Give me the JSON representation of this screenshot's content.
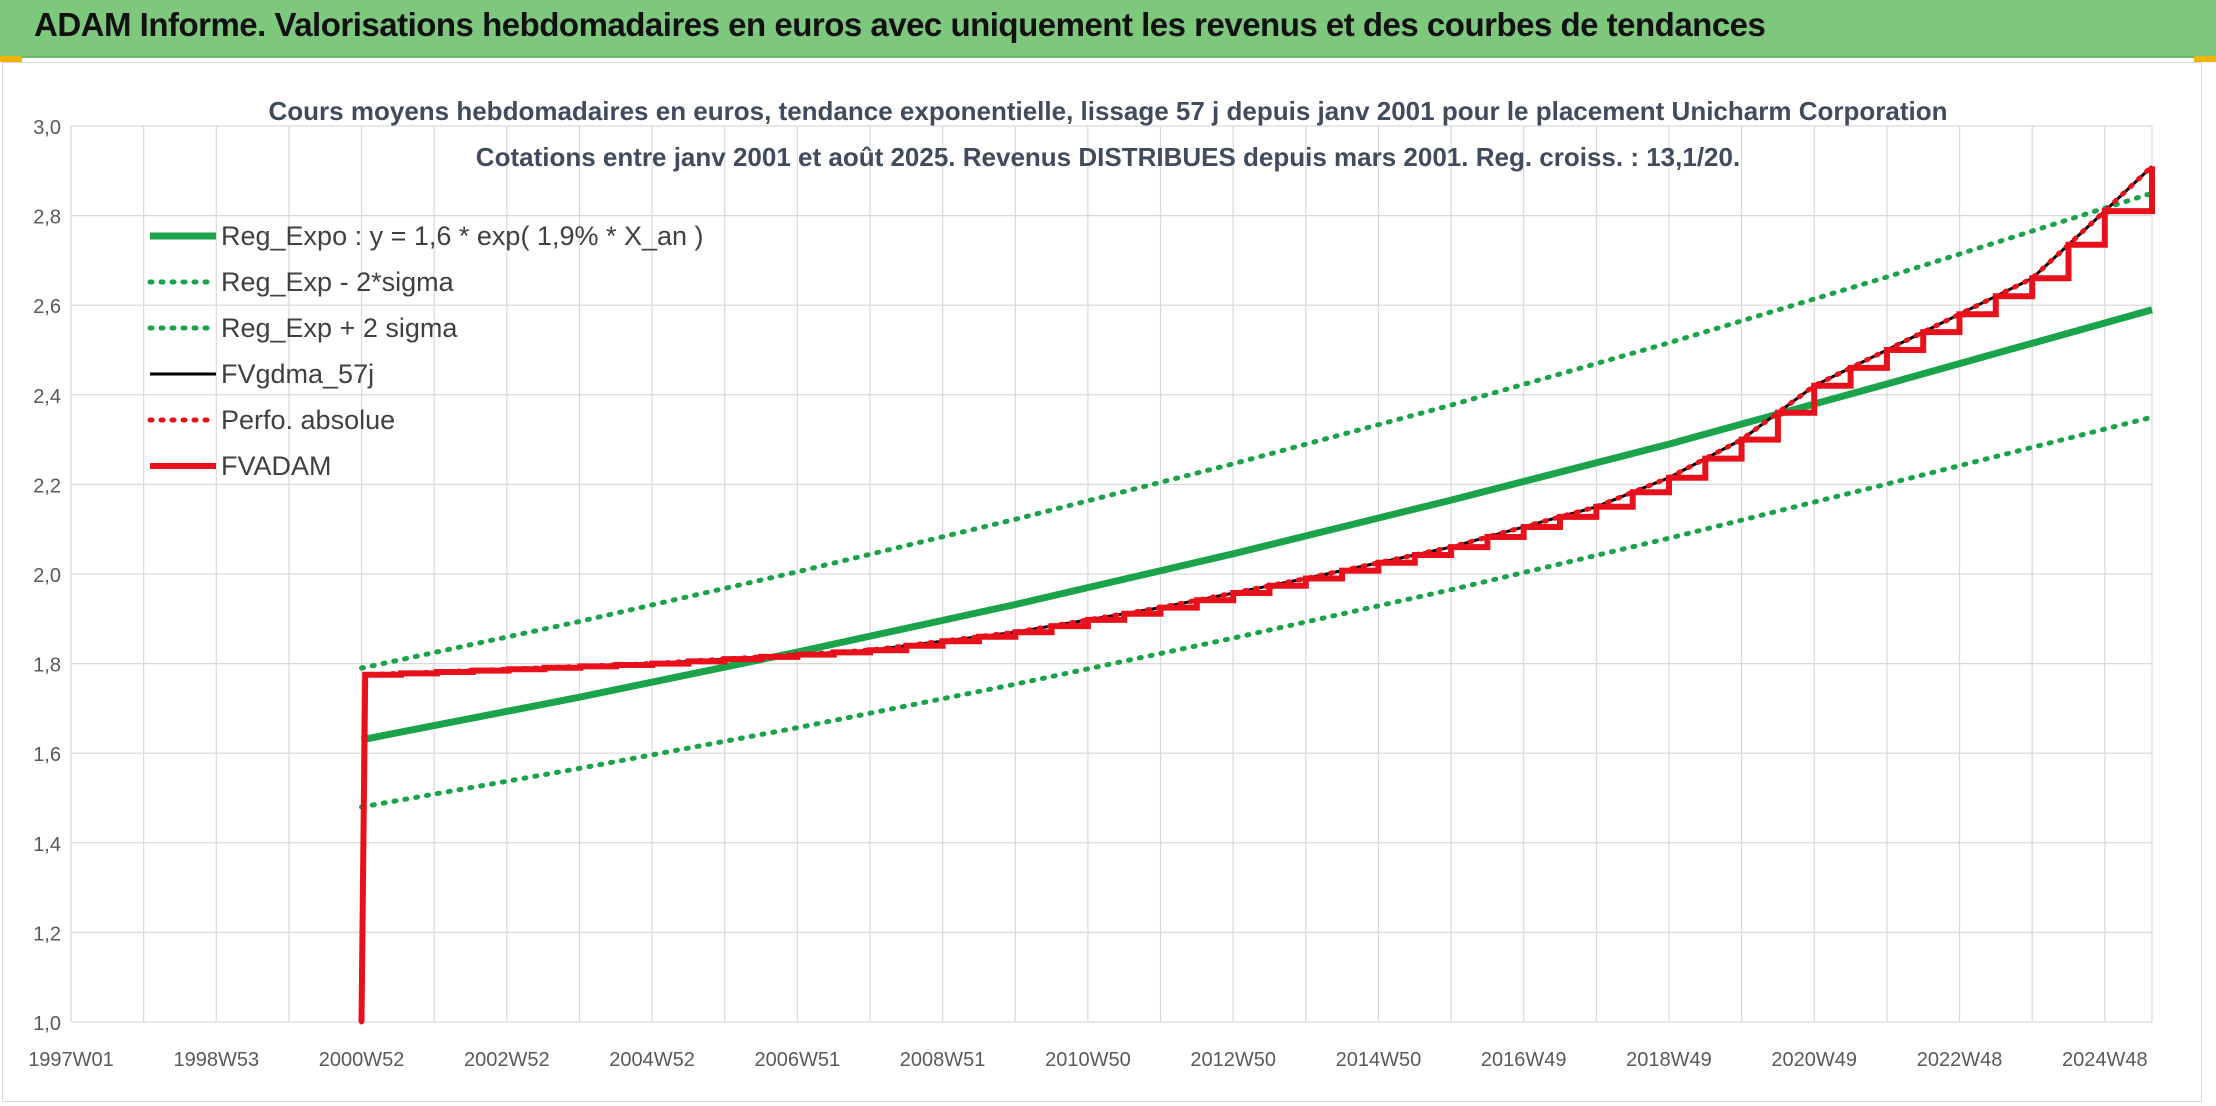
{
  "banner": {
    "title": "ADAM Informe. Valorisations hebdomadaires en euros avec uniquement les revenus et des courbes de tendances"
  },
  "colors": {
    "banner_bg": "#7ec87e",
    "reg_green": "#1aa34a",
    "red": "#e8101a",
    "black": "#000000",
    "grid": "#d9d9d9"
  },
  "chart_data": {
    "type": "line",
    "title": "Cours moyens hebdomadaires en euros, tendance exponentielle, lissage 57 j depuis janv 2001 pour le placement Unicharm Corporation",
    "subtitle": "Cotations entre janv 2001 et août 2025. Revenus DISTRIBUES depuis mars 2001. Reg. croiss. : 13,1/20.",
    "xlabel": "",
    "ylabel": "",
    "ylim": [
      1.0,
      3.0
    ],
    "xlim": [
      1997.0,
      2025.65
    ],
    "yticks": [
      "1,0",
      "1,2",
      "1,4",
      "1,6",
      "1,8",
      "2,0",
      "2,2",
      "2,4",
      "2,6",
      "2,8",
      "3,0"
    ],
    "xticks": [
      {
        "label": "1997W01",
        "x": 1997.0
      },
      {
        "label": "1998W53",
        "x": 1999.0
      },
      {
        "label": "2000W52",
        "x": 2001.0
      },
      {
        "label": "2002W52",
        "x": 2003.0
      },
      {
        "label": "2004W52",
        "x": 2005.0
      },
      {
        "label": "2006W51",
        "x": 2007.0
      },
      {
        "label": "2008W51",
        "x": 2009.0
      },
      {
        "label": "2010W50",
        "x": 2011.0
      },
      {
        "label": "2012W50",
        "x": 2013.0
      },
      {
        "label": "2014W50",
        "x": 2015.0
      },
      {
        "label": "2016W49",
        "x": 2017.0
      },
      {
        "label": "2018W49",
        "x": 2019.0
      },
      {
        "label": "2020W49",
        "x": 2021.0
      },
      {
        "label": "2022W48",
        "x": 2023.0
      },
      {
        "label": "2024W48",
        "x": 2025.0
      }
    ],
    "grid": true,
    "legend_placement": "top-left",
    "series": [
      {
        "name": "Reg_Expo : y = 1,6 * exp( 1,9% *  X_an )",
        "style": "solid",
        "color": "#1aa34a",
        "x": [
          2001.0,
          2004.0,
          2007.0,
          2010.0,
          2013.0,
          2016.0,
          2019.0,
          2022.0,
          2025.65
        ],
        "y": [
          1.63,
          1.725,
          1.826,
          1.932,
          2.045,
          2.165,
          2.29,
          2.424,
          2.59
        ]
      },
      {
        "name": "Reg_Exp - 2*sigma",
        "style": "dotted",
        "color": "#1aa34a",
        "x": [
          2001.0,
          2004.0,
          2007.0,
          2010.0,
          2013.0,
          2016.0,
          2019.0,
          2022.0,
          2025.65
        ],
        "y": [
          1.48,
          1.566,
          1.657,
          1.754,
          1.857,
          1.965,
          2.08,
          2.201,
          2.35
        ]
      },
      {
        "name": "Reg_Exp + 2 sigma",
        "style": "dotted",
        "color": "#1aa34a",
        "x": [
          2001.0,
          2004.0,
          2007.0,
          2010.0,
          2013.0,
          2016.0,
          2019.0,
          2022.0,
          2025.65
        ],
        "y": [
          1.79,
          1.894,
          2.005,
          2.122,
          2.246,
          2.377,
          2.516,
          2.663,
          2.85
        ]
      },
      {
        "name": "FVgdma_57j",
        "style": "solid",
        "color": "#000000",
        "x": [
          2001.0,
          2001.05,
          2005.0,
          2008.0,
          2010.0,
          2012.0,
          2014.0,
          2016.0,
          2018.0,
          2019.0,
          2020.0,
          2021.0,
          2022.0,
          2023.0,
          2024.0,
          2025.0,
          2025.65
        ],
        "y": [
          1.0,
          1.775,
          1.8,
          1.83,
          1.87,
          1.925,
          1.99,
          2.06,
          2.15,
          2.215,
          2.3,
          2.42,
          2.5,
          2.58,
          2.66,
          2.81,
          2.91
        ]
      },
      {
        "name": "Perfo. absolue",
        "style": "dotted",
        "color": "#e8101a",
        "x": [
          2001.0,
          2001.05,
          2005.0,
          2008.0,
          2010.0,
          2012.0,
          2014.0,
          2016.0,
          2018.0,
          2019.0,
          2020.0,
          2021.0,
          2022.0,
          2023.0,
          2024.0,
          2025.0,
          2025.65
        ],
        "y": [
          1.0,
          1.775,
          1.8,
          1.83,
          1.87,
          1.925,
          1.99,
          2.06,
          2.15,
          2.215,
          2.3,
          2.42,
          2.5,
          2.58,
          2.66,
          2.81,
          2.91
        ]
      },
      {
        "name": "FVADAM",
        "style": "step",
        "color": "#e8101a",
        "x": [
          2001.0,
          2001.05,
          2005.0,
          2008.0,
          2010.0,
          2012.0,
          2014.0,
          2016.0,
          2018.0,
          2019.0,
          2020.0,
          2021.0,
          2022.0,
          2023.0,
          2024.0,
          2025.0,
          2025.65
        ],
        "y": [
          1.0,
          1.775,
          1.8,
          1.83,
          1.87,
          1.925,
          1.99,
          2.06,
          2.15,
          2.215,
          2.3,
          2.42,
          2.5,
          2.58,
          2.66,
          2.81,
          2.91
        ]
      }
    ]
  }
}
